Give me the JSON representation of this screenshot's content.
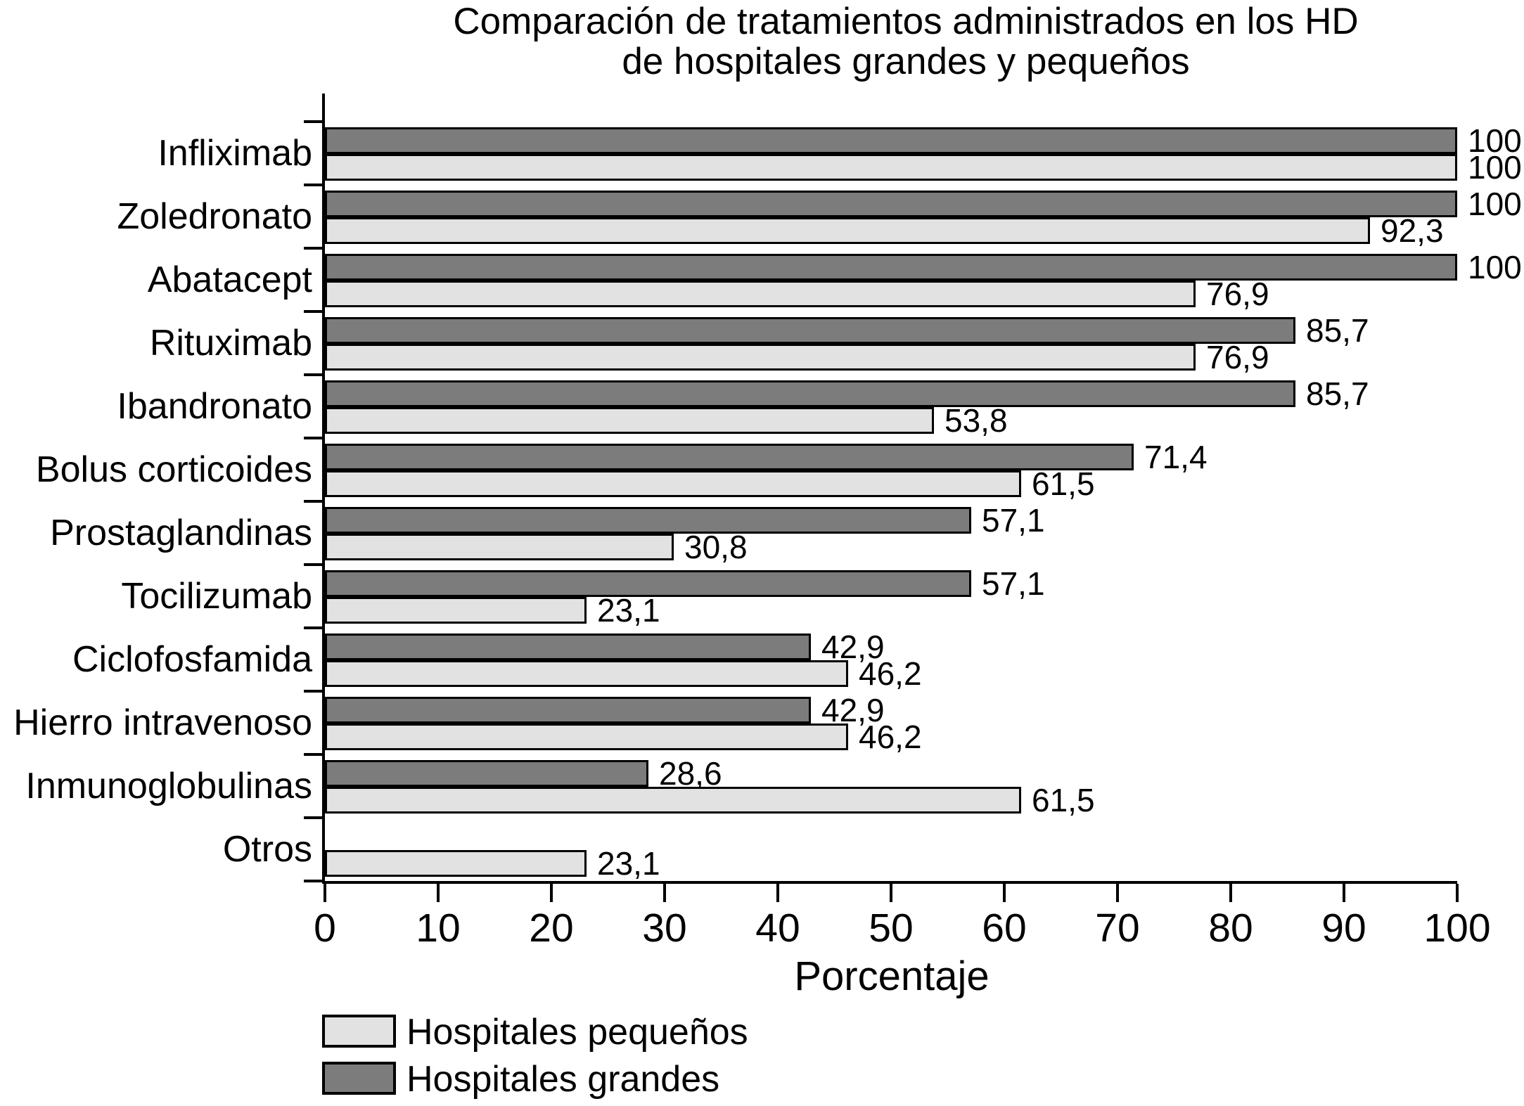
{
  "title": {
    "line1": "Comparación de tratamientos administrados en los HD",
    "line2": "de hospitales grandes y pequeños"
  },
  "chart_data": {
    "type": "bar",
    "orientation": "horizontal",
    "title": "Comparación de tratamientos administrados en los HD de hospitales grandes y pequeños",
    "categories": [
      "Infliximab",
      "Zoledronato",
      "Abatacept",
      "Rituximab",
      "Ibandronato",
      "Bolus corticoides",
      "Prostaglandinas",
      "Tocilizumab",
      "Ciclofosfamida",
      "Hierro intravenoso",
      "Inmunoglobulinas",
      "Otros"
    ],
    "series": [
      {
        "name": "Hospitales grandes",
        "color": "#7c7c7c",
        "position_in_group": "top",
        "values": [
          100,
          100,
          100,
          85.7,
          85.7,
          71.4,
          57.1,
          57.1,
          42.9,
          42.9,
          28.6,
          null
        ],
        "labels": [
          "100",
          "100",
          "100",
          "85,7",
          "85,7",
          "71,4",
          "57,1",
          "57,1",
          "42,9",
          "42,9",
          "28,6",
          ""
        ]
      },
      {
        "name": "Hospitales pequeños",
        "color": "#e2e2e2",
        "position_in_group": "bottom",
        "values": [
          100,
          92.3,
          76.9,
          76.9,
          53.8,
          61.5,
          30.8,
          23.1,
          46.2,
          46.2,
          61.5,
          23.1
        ],
        "labels": [
          "100",
          "92,3",
          "76,9",
          "76,9",
          "53,8",
          "61,5",
          "30,8",
          "23,1",
          "46,2",
          "46,2",
          "61,5",
          "23,1"
        ]
      }
    ],
    "xlabel": "Porcentaje",
    "xlim": [
      0,
      100
    ],
    "x_ticks": [
      "0",
      "10",
      "20",
      "30",
      "40",
      "50",
      "60",
      "70",
      "80",
      "90",
      "100"
    ],
    "grid": false,
    "legend_position": "bottom-left",
    "legend": [
      {
        "label": "Hospitales pequeños",
        "color": "#e2e2e2"
      },
      {
        "label": "Hospitales grandes",
        "color": "#7c7c7c"
      }
    ],
    "axis_color": "#000000",
    "background_color": "#ffffff"
  }
}
